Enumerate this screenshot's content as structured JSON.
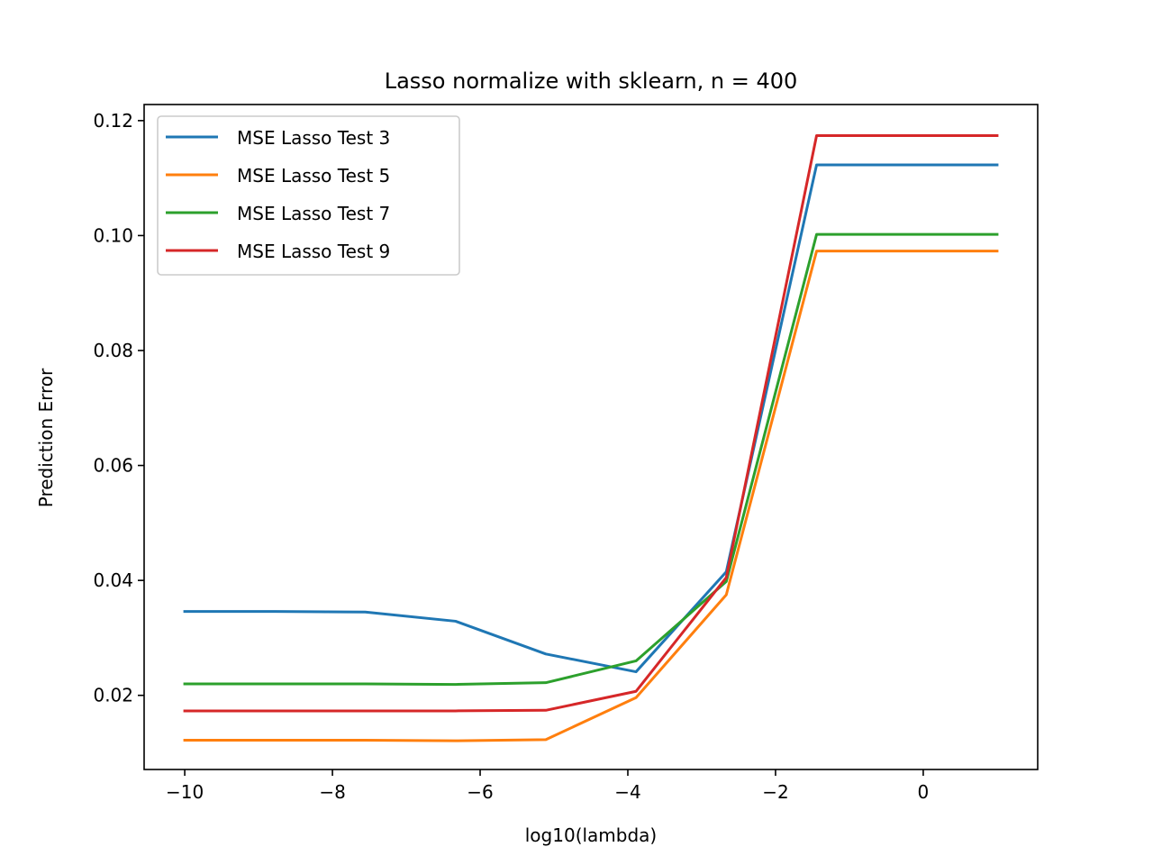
{
  "chart_data": {
    "type": "line",
    "title": "Lasso normalize with sklearn, n = 400",
    "xlabel": "log10(lambda)",
    "ylabel": "Prediction Error",
    "xlim": [
      -10.55,
      1.55
    ],
    "ylim": [
      0.0071,
      0.1228
    ],
    "xticks": [
      -10,
      -8,
      -6,
      -4,
      -2,
      0
    ],
    "xtick_labels": [
      "−10",
      "−8",
      "−6",
      "−4",
      "−2",
      "0"
    ],
    "yticks": [
      0.02,
      0.04,
      0.06,
      0.08,
      0.1,
      0.12
    ],
    "ytick_labels": [
      "0.02",
      "0.04",
      "0.06",
      "0.08",
      "0.10",
      "0.12"
    ],
    "grid": false,
    "legend_position": "top-left",
    "x": [
      -10,
      -8.778,
      -7.556,
      -6.333,
      -5.111,
      -3.889,
      -2.667,
      -1.444,
      -0.222,
      1
    ],
    "series": [
      {
        "name": "MSE Lasso Test 3",
        "color": "#1f77b4",
        "values": [
          0.0346,
          0.0346,
          0.0345,
          0.0329,
          0.0272,
          0.0241,
          0.0415,
          0.1123,
          0.1123,
          0.1123
        ]
      },
      {
        "name": "MSE Lasso Test 5",
        "color": "#ff7f0e",
        "values": [
          0.0122,
          0.0122,
          0.0122,
          0.0121,
          0.0123,
          0.0196,
          0.0375,
          0.0973,
          0.0973,
          0.0973
        ]
      },
      {
        "name": "MSE Lasso Test 7",
        "color": "#2ca02c",
        "values": [
          0.022,
          0.022,
          0.022,
          0.0219,
          0.0222,
          0.026,
          0.0398,
          0.1002,
          0.1002,
          0.1002
        ]
      },
      {
        "name": "MSE Lasso Test 9",
        "color": "#d62728",
        "values": [
          0.0173,
          0.0173,
          0.0173,
          0.0173,
          0.0174,
          0.0207,
          0.0405,
          0.1174,
          0.1174,
          0.1174
        ]
      }
    ]
  }
}
